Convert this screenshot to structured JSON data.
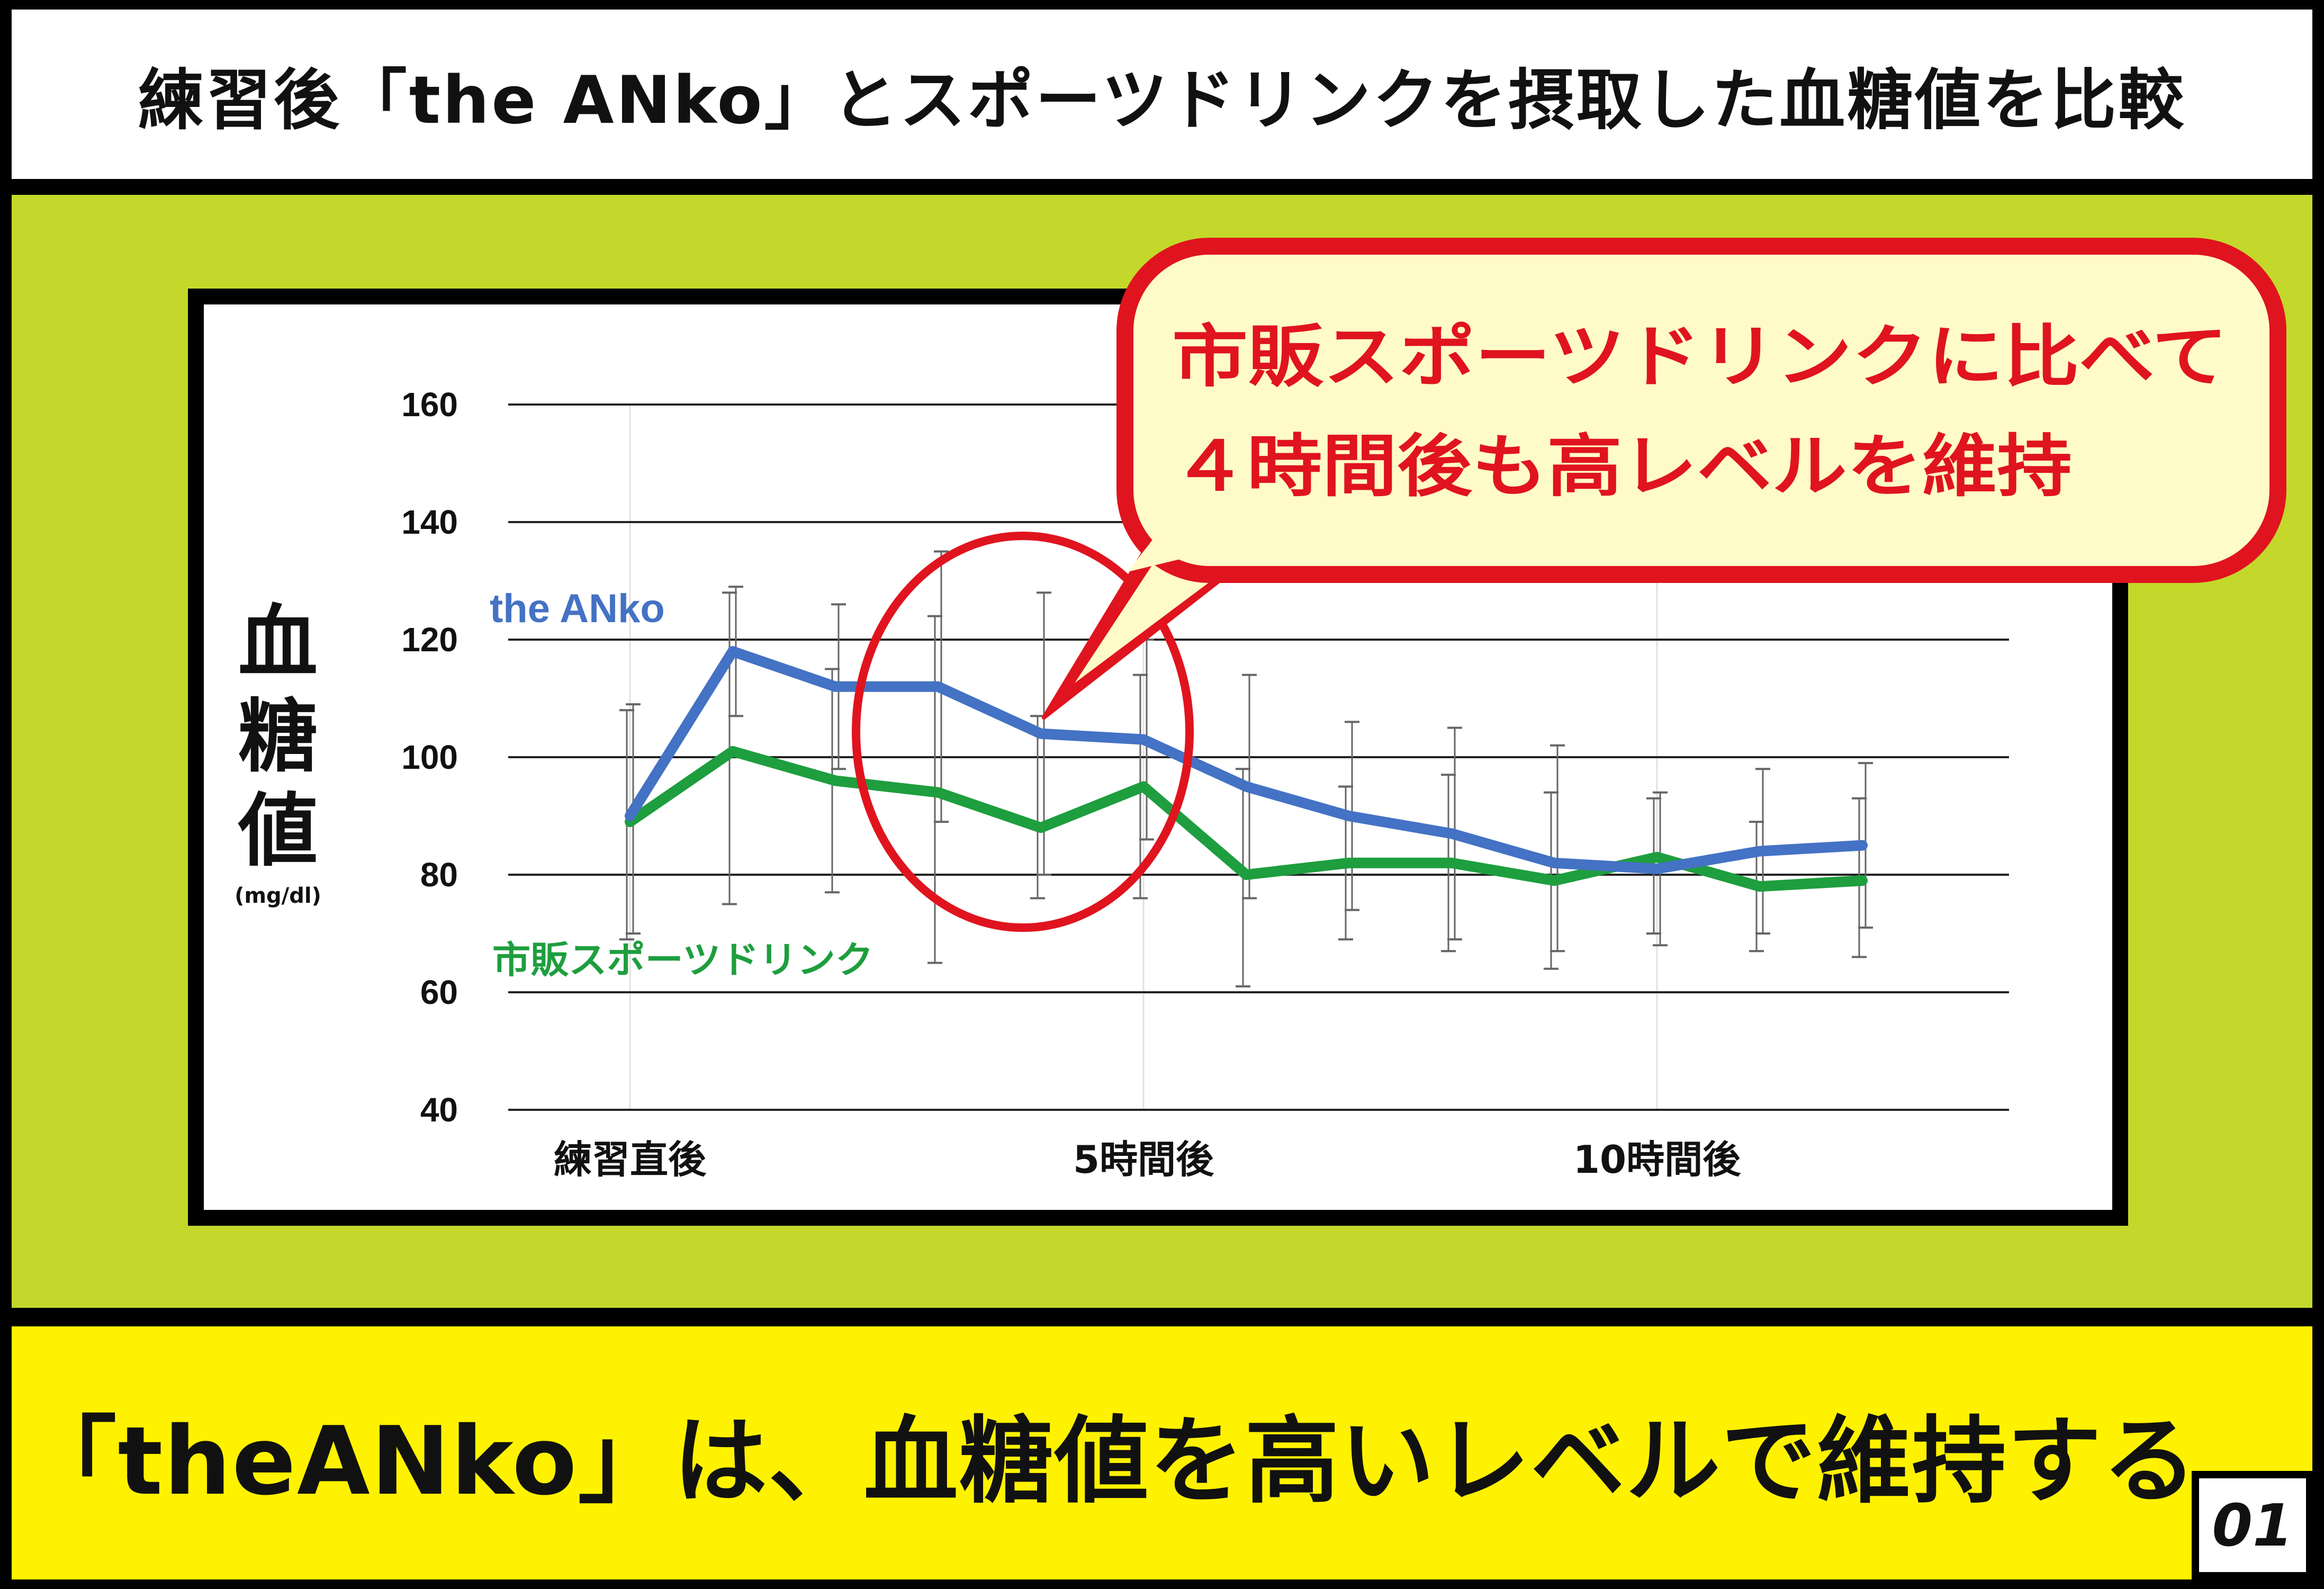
{
  "header": {
    "title": "練習後「the ANko」とスポーツドリンクを摂取した血糖値を比較"
  },
  "callout": {
    "line1": "市販スポーツドリンクに比べて",
    "line2": "４時間後も高レベルを維持"
  },
  "footer": {
    "conclusion": "「theANko」は、血糖値を高いレベルで維持する",
    "page_number": "01"
  },
  "colors": {
    "panel_green": "#c3d82b",
    "footer_yellow": "#fff200",
    "anko_blue": "#4472c4",
    "sports_green": "#1e9e3e",
    "highlight_red": "#e0141e",
    "callout_fill": "#fffbc9"
  },
  "chart_data": {
    "type": "line",
    "ylabel": "血糖値",
    "ylabel_unit": "(mg/dl)",
    "ylim": [
      40,
      160
    ],
    "yticks": [
      40,
      60,
      80,
      100,
      120,
      140,
      160
    ],
    "x_count": 13,
    "x_tick_labels": [
      {
        "index": 0,
        "label": "練習直後"
      },
      {
        "index": 5,
        "label": "5時間後"
      },
      {
        "index": 10,
        "label": "10時間後"
      }
    ],
    "grid": "horizontal",
    "series": [
      {
        "name": "the ANko",
        "color": "#4472c4",
        "values": [
          90,
          118,
          112,
          112,
          104,
          103,
          95,
          90,
          87,
          82,
          81,
          84,
          85
        ],
        "err_high": [
          109,
          129,
          126,
          135,
          128,
          120,
          114,
          106,
          105,
          102,
          94,
          98,
          99
        ],
        "err_low": [
          70,
          107,
          98,
          89,
          80,
          86,
          76,
          74,
          69,
          67,
          68,
          70,
          71
        ]
      },
      {
        "name": "市販スポーツドリンク",
        "color": "#1e9e3e",
        "values": [
          89,
          101,
          96,
          94,
          88,
          95,
          80,
          82,
          82,
          79,
          83,
          78,
          79
        ],
        "err_high": [
          108,
          128,
          115,
          124,
          107,
          114,
          98,
          95,
          97,
          94,
          93,
          89,
          93
        ],
        "err_low": [
          69,
          75,
          77,
          65,
          76,
          76,
          61,
          69,
          67,
          64,
          70,
          67,
          66
        ]
      }
    ]
  }
}
